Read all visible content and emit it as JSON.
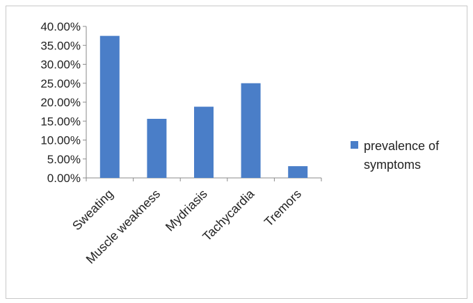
{
  "chart_data": {
    "type": "bar",
    "categories": [
      "Sweating",
      "Muscle weakness",
      "Mydriasis",
      "Tachycardia",
      "Tremors"
    ],
    "series": [
      {
        "name": "prevalence of symptoms",
        "values": [
          0.375,
          0.156,
          0.188,
          0.25,
          0.031
        ],
        "color": "#4a7ec8"
      }
    ],
    "ylim": [
      0,
      0.4
    ],
    "yticks": [
      0,
      0.05,
      0.1,
      0.15,
      0.2,
      0.25,
      0.3,
      0.35,
      0.4
    ],
    "ytick_labels": [
      "0.00%",
      "5.00%",
      "10.00%",
      "15.00%",
      "20.00%",
      "25.00%",
      "30.00%",
      "35.00%",
      "40.00%"
    ],
    "legend": {
      "position": "right",
      "lines": [
        "prevalence of",
        "symptoms"
      ]
    },
    "grid": false,
    "title": "",
    "xlabel": "",
    "ylabel": ""
  }
}
